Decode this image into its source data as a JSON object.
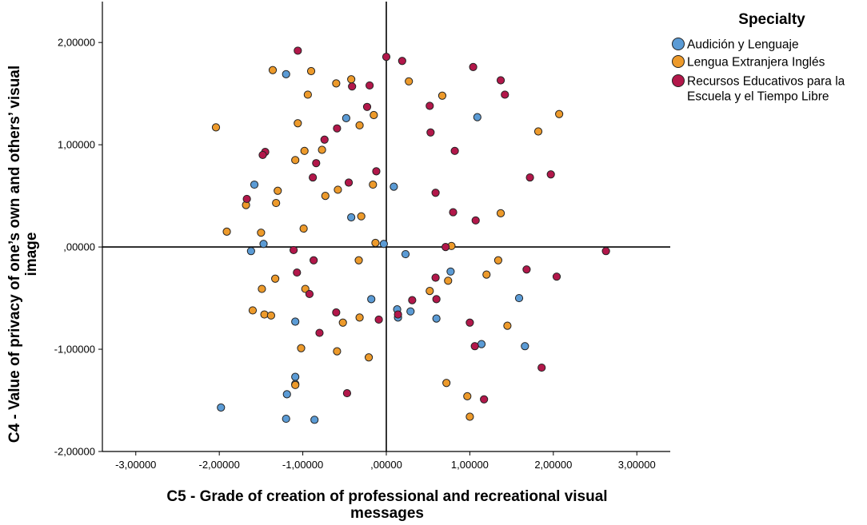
{
  "chart_data": {
    "type": "scatter",
    "xlabel_lines": [
      "C5 - Grade of creation of professional and recreational visual",
      "messages"
    ],
    "ylabel_lines": [
      "C4 - Value of privacy of one’s own and others’ visual",
      "image"
    ],
    "xlim": [
      -3.4,
      3.4
    ],
    "ylim": [
      -2.0,
      2.4
    ],
    "xticks": [
      -3,
      -2,
      -1,
      0,
      1,
      2,
      3
    ],
    "xtick_labels": [
      "-3,00000",
      "-2,00000",
      "-1,00000",
      ",00000",
      "1,00000",
      "2,00000",
      "3,00000"
    ],
    "yticks": [
      -2,
      -1,
      0,
      1,
      2
    ],
    "ytick_labels": [
      "-2,00000",
      "-1,00000",
      ",00000",
      "1,00000",
      "2,00000"
    ],
    "reference_lines": {
      "x": 0,
      "y": 0
    },
    "grid": false,
    "legend": {
      "title": "Specialty",
      "placement": "top-right"
    },
    "series": [
      {
        "name_lines": [
          "Audición y Lenguaje"
        ],
        "color": "#5b9bd5",
        "points": [
          [
            -1.2,
            1.69
          ],
          [
            -0.48,
            1.26
          ],
          [
            1.09,
            1.27
          ],
          [
            -1.58,
            0.61
          ],
          [
            0.09,
            0.59
          ],
          [
            -0.42,
            0.29
          ],
          [
            -1.47,
            0.03
          ],
          [
            -1.62,
            -0.04
          ],
          [
            -0.03,
            0.03
          ],
          [
            0.23,
            -0.07
          ],
          [
            0.77,
            -0.24
          ],
          [
            -1.09,
            -0.73
          ],
          [
            -0.18,
            -0.51
          ],
          [
            0.13,
            -0.61
          ],
          [
            0.14,
            -0.69
          ],
          [
            0.29,
            -0.63
          ],
          [
            0.6,
            -0.7
          ],
          [
            1.59,
            -0.5
          ],
          [
            1.14,
            -0.95
          ],
          [
            1.66,
            -0.97
          ],
          [
            -1.09,
            -1.27
          ],
          [
            -1.19,
            -1.44
          ],
          [
            -1.09,
            -1.34
          ],
          [
            -1.2,
            -1.68
          ],
          [
            -0.86,
            -1.69
          ],
          [
            -1.98,
            -1.57
          ]
        ]
      },
      {
        "name_lines": [
          "Lengua Extranjera Inglés"
        ],
        "color": "#ed9a2b",
        "points": [
          [
            -2.04,
            1.17
          ],
          [
            -1.36,
            1.73
          ],
          [
            -0.9,
            1.72
          ],
          [
            -0.6,
            1.6
          ],
          [
            -0.42,
            1.64
          ],
          [
            -0.94,
            1.49
          ],
          [
            0.27,
            1.62
          ],
          [
            0.67,
            1.48
          ],
          [
            -1.06,
            1.21
          ],
          [
            -0.32,
            1.19
          ],
          [
            -0.15,
            1.29
          ],
          [
            1.82,
            1.13
          ],
          [
            2.07,
            1.3
          ],
          [
            -0.98,
            0.94
          ],
          [
            -0.77,
            0.95
          ],
          [
            -1.09,
            0.85
          ],
          [
            -1.3,
            0.55
          ],
          [
            -1.32,
            0.43
          ],
          [
            -0.73,
            0.5
          ],
          [
            -0.58,
            0.56
          ],
          [
            -0.16,
            0.61
          ],
          [
            -1.68,
            0.41
          ],
          [
            -0.3,
            0.3
          ],
          [
            1.37,
            0.33
          ],
          [
            -1.91,
            0.15
          ],
          [
            -1.5,
            0.14
          ],
          [
            -0.99,
            0.18
          ],
          [
            -0.13,
            0.04
          ],
          [
            0.78,
            0.01
          ],
          [
            -0.33,
            -0.13
          ],
          [
            1.34,
            -0.13
          ],
          [
            1.2,
            -0.27
          ],
          [
            -1.33,
            -0.31
          ],
          [
            0.74,
            -0.33
          ],
          [
            -1.49,
            -0.41
          ],
          [
            -0.97,
            -0.41
          ],
          [
            0.52,
            -0.43
          ],
          [
            -1.6,
            -0.62
          ],
          [
            -1.46,
            -0.66
          ],
          [
            -1.38,
            -0.67
          ],
          [
            -0.32,
            -0.69
          ],
          [
            -0.52,
            -0.74
          ],
          [
            1.45,
            -0.77
          ],
          [
            -1.02,
            -0.99
          ],
          [
            -0.59,
            -1.02
          ],
          [
            -0.21,
            -1.08
          ],
          [
            0.72,
            -1.33
          ],
          [
            -1.09,
            -1.35
          ],
          [
            0.97,
            -1.46
          ],
          [
            1.0,
            -1.66
          ]
        ]
      },
      {
        "name_lines": [
          "Recursos Educativos para la",
          "Escuela y el Tiempo Libre"
        ],
        "color": "#b2174a",
        "points": [
          [
            -1.06,
            1.92
          ],
          [
            0.0,
            1.86
          ],
          [
            0.19,
            1.82
          ],
          [
            1.04,
            1.76
          ],
          [
            1.37,
            1.63
          ],
          [
            -0.41,
            1.57
          ],
          [
            -0.2,
            1.58
          ],
          [
            1.42,
            1.49
          ],
          [
            0.52,
            1.38
          ],
          [
            -0.23,
            1.37
          ],
          [
            -0.59,
            1.16
          ],
          [
            0.53,
            1.12
          ],
          [
            -0.74,
            1.05
          ],
          [
            -1.45,
            0.93
          ],
          [
            -1.48,
            0.9
          ],
          [
            0.82,
            0.94
          ],
          [
            -0.84,
            0.82
          ],
          [
            -0.12,
            0.74
          ],
          [
            1.97,
            0.71
          ],
          [
            -0.88,
            0.68
          ],
          [
            1.72,
            0.68
          ],
          [
            -0.45,
            0.63
          ],
          [
            0.59,
            0.53
          ],
          [
            -1.67,
            0.47
          ],
          [
            0.8,
            0.34
          ],
          [
            1.07,
            0.26
          ],
          [
            2.63,
            -0.04
          ],
          [
            -1.11,
            -0.03
          ],
          [
            0.71,
            0.0
          ],
          [
            -0.87,
            -0.13
          ],
          [
            -1.07,
            -0.25
          ],
          [
            1.68,
            -0.22
          ],
          [
            2.04,
            -0.29
          ],
          [
            0.59,
            -0.3
          ],
          [
            -0.92,
            -0.46
          ],
          [
            0.6,
            -0.51
          ],
          [
            0.31,
            -0.52
          ],
          [
            -0.6,
            -0.64
          ],
          [
            0.14,
            -0.66
          ],
          [
            -0.09,
            -0.71
          ],
          [
            1.0,
            -0.74
          ],
          [
            -0.8,
            -0.84
          ],
          [
            1.06,
            -0.97
          ],
          [
            1.86,
            -1.18
          ],
          [
            -0.47,
            -1.43
          ],
          [
            1.17,
            -1.49
          ]
        ]
      }
    ]
  }
}
